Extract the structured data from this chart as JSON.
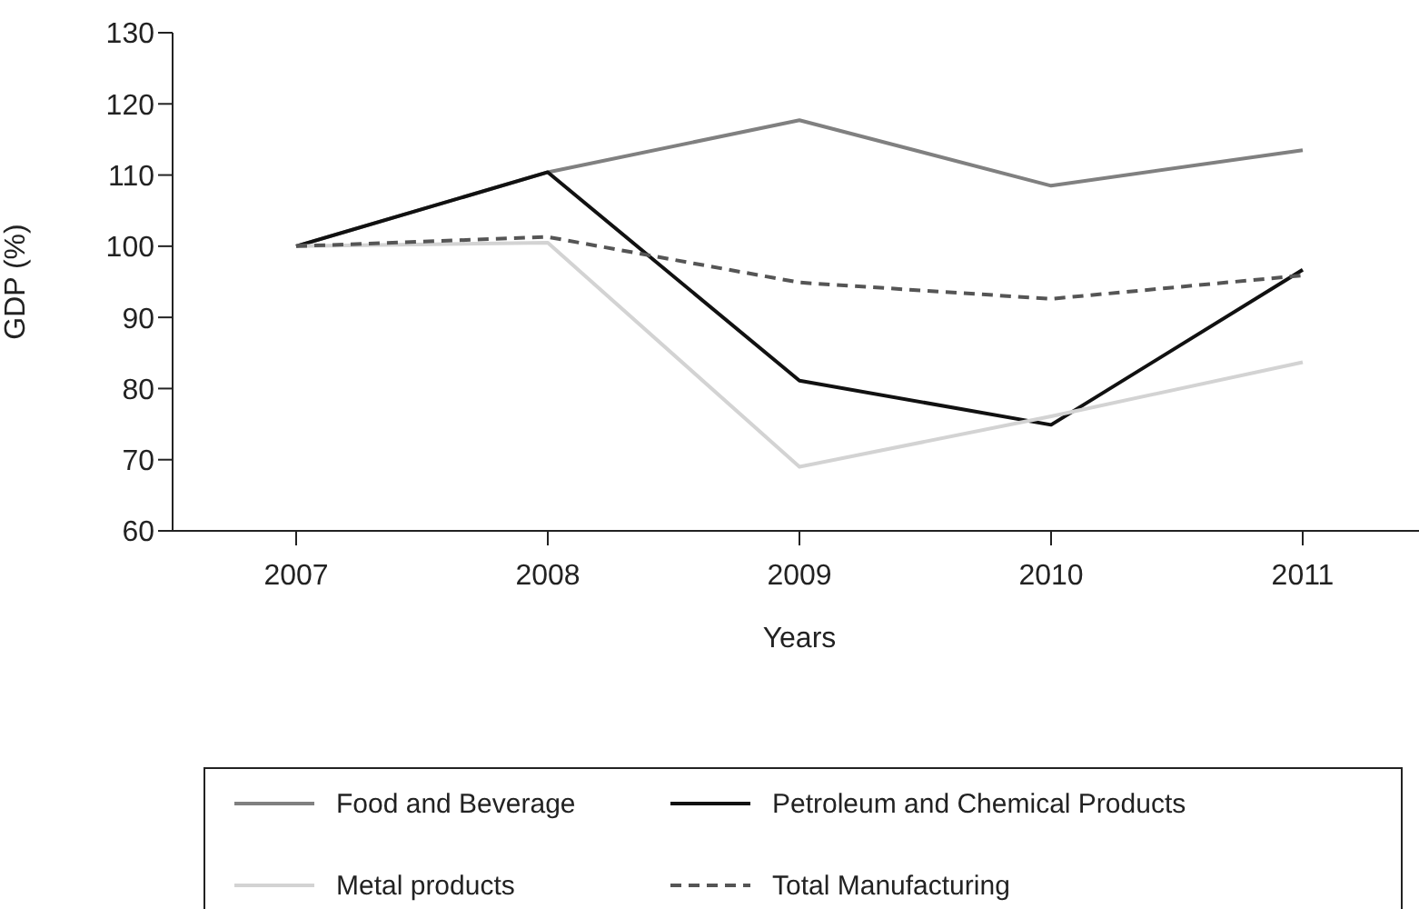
{
  "chart_data": {
    "type": "line",
    "xlabel": "Years",
    "ylabel": "GDP (%)",
    "categories": [
      "2007",
      "2008",
      "2009",
      "2010",
      "2011"
    ],
    "ylim": [
      60,
      130
    ],
    "yticks": [
      60,
      70,
      80,
      90,
      100,
      110,
      120,
      130
    ],
    "grid": false,
    "legend": "bottom",
    "marker": "none",
    "series": [
      {
        "name": "Food and Beverage",
        "color": "#808080",
        "values": [
          100,
          110.4,
          117.7,
          108.5,
          113.5
        ]
      },
      {
        "name": "Petroleum and Chemical Products",
        "color": "#111111",
        "values": [
          100,
          110.4,
          81.1,
          74.9,
          96.7
        ]
      },
      {
        "name": "Metal products",
        "color": "#d3d3d3",
        "values": [
          100,
          100.5,
          69,
          76.1,
          83.7
        ]
      },
      {
        "name": "Total Manufacturing",
        "color": "#555555",
        "line_style": "dashed",
        "values": [
          100,
          101.3,
          94.9,
          92.6,
          95.9
        ]
      }
    ]
  }
}
